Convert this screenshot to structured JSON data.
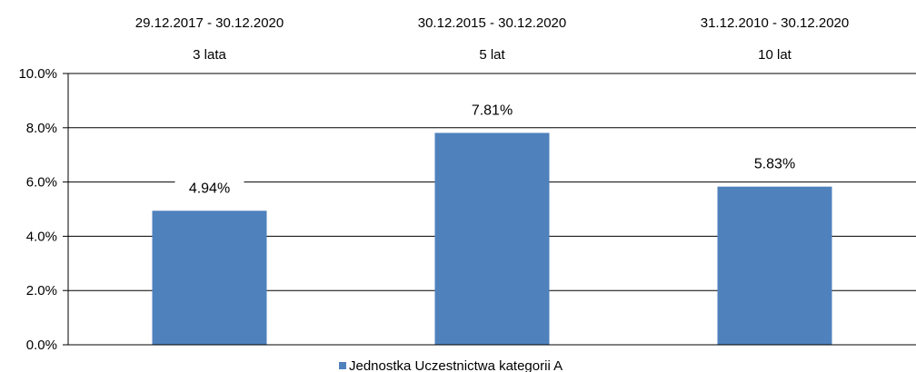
{
  "chart_data": {
    "type": "bar",
    "categories": [
      {
        "range": "29.12.2017 - 30.12.2020",
        "period": "3 lata"
      },
      {
        "range": "30.12.2015 - 30.12.2020",
        "period": "5 lat"
      },
      {
        "range": "31.12.2010 - 30.12.2020",
        "period": "10 lat"
      }
    ],
    "series": [
      {
        "name": "Jednostka Uczestnictwa kategorii A",
        "values": [
          4.94,
          7.81,
          5.83
        ],
        "value_labels": [
          "4.94%",
          "7.81%",
          "5.83%"
        ],
        "color": "#4f81bd"
      }
    ],
    "ylim": [
      0,
      10
    ],
    "y_ticks": [
      0,
      2,
      4,
      6,
      8,
      10
    ],
    "y_tick_labels": [
      "0.0%",
      "2.0%",
      "4.0%",
      "6.0%",
      "8.0%",
      "10.0%"
    ],
    "grid": true,
    "legend_position": "bottom",
    "title": "",
    "xlabel": "",
    "ylabel": ""
  }
}
